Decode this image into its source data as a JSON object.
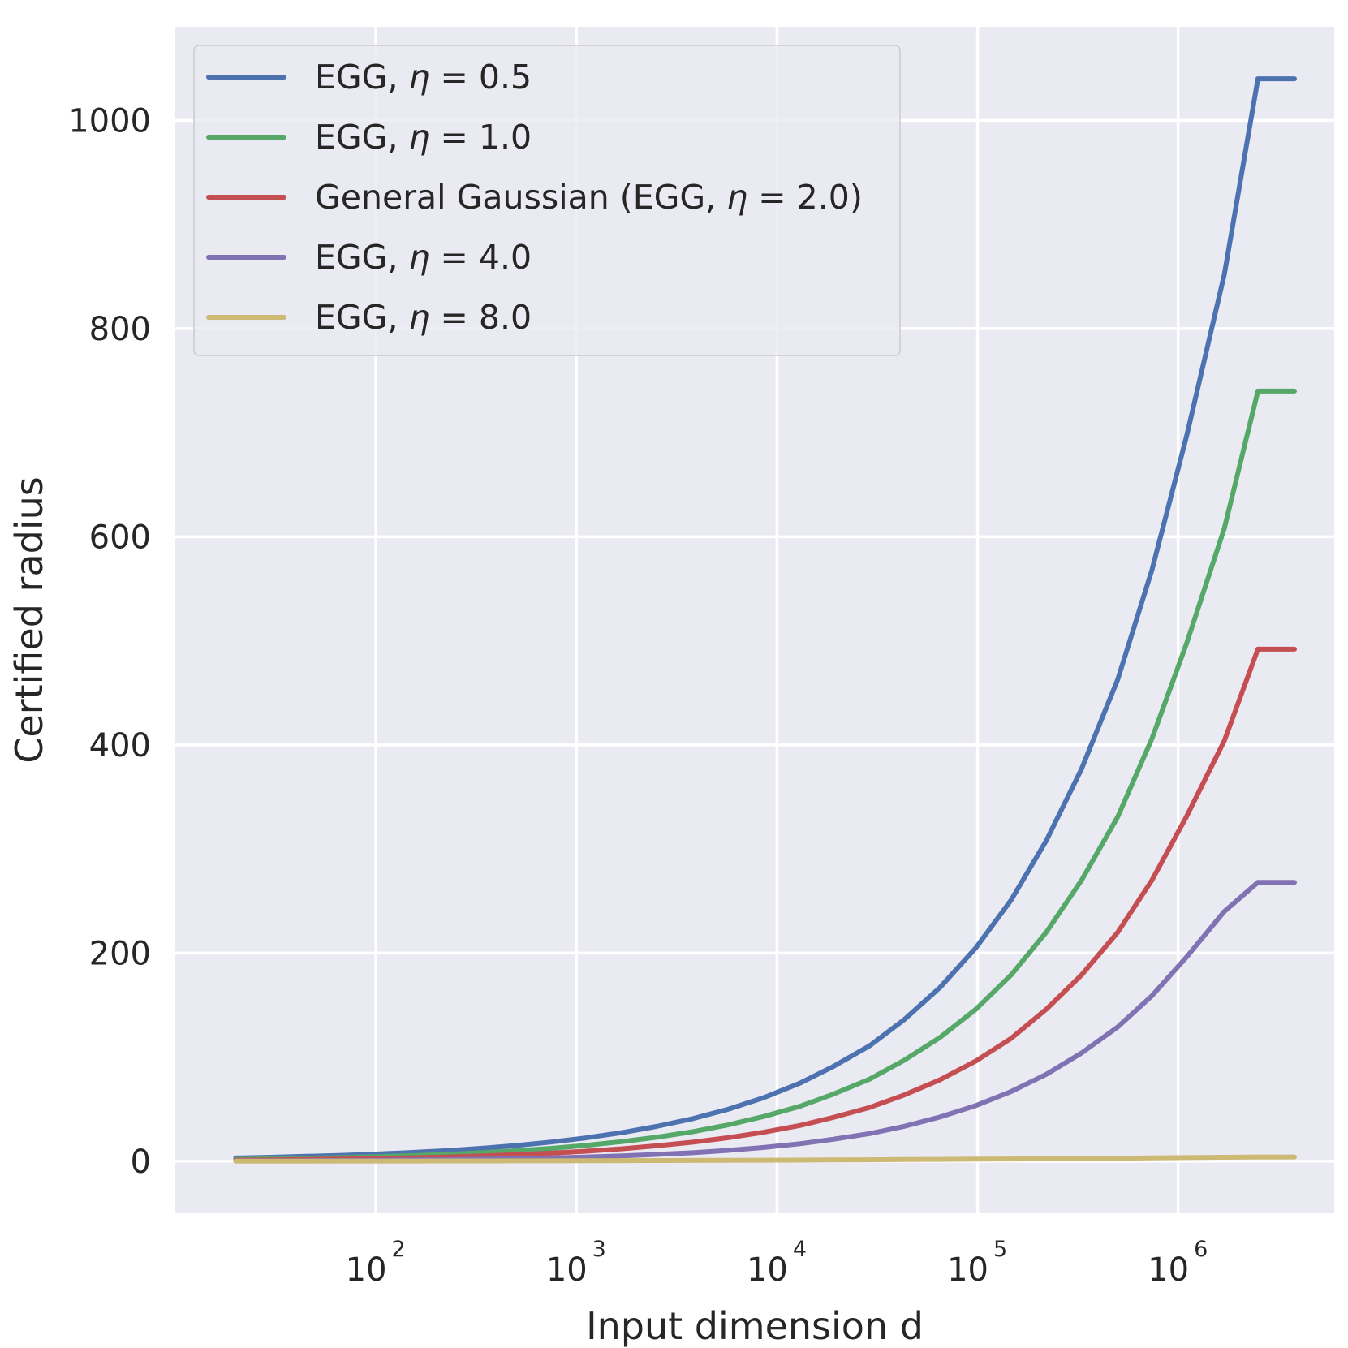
{
  "chart_data": {
    "type": "line",
    "xscale": "log",
    "xlabel": "Input dimension d",
    "ylabel": "Certified radius",
    "xlim": [
      10,
      6000000
    ],
    "ylim": [
      -50,
      1090
    ],
    "yticks": [
      0,
      200,
      400,
      600,
      800,
      1000
    ],
    "ytick_labels": [
      "0",
      "200",
      "400",
      "600",
      "800",
      "1000"
    ],
    "xticks": [
      {
        "value": 100,
        "base": "10",
        "exp": "2"
      },
      {
        "value": 1000,
        "base": "10",
        "exp": "3"
      },
      {
        "value": 10000,
        "base": "10",
        "exp": "4"
      },
      {
        "value": 100000,
        "base": "10",
        "exp": "5"
      },
      {
        "value": 1000000,
        "base": "10",
        "exp": "6"
      }
    ],
    "grid": true,
    "legend_position": "upper-left",
    "x": [
      20,
      30,
      45,
      68,
      100,
      150,
      230,
      350,
      500,
      750,
      1100,
      1700,
      2500,
      3800,
      5700,
      8600,
      13000,
      19000,
      29000,
      43000,
      65000,
      98000,
      147000,
      220000,
      330000,
      500000,
      740000,
      1100000,
      1700000,
      2500000,
      3800000
    ],
    "series": [
      {
        "name": "EGG, η = 0.5",
        "prefix": "EGG, ",
        "var": "η",
        "suffix": " = 0.5",
        "color": "#4c72b0",
        "values": [
          3.1,
          3.8,
          4.7,
          5.7,
          6.9,
          8.4,
          10.3,
          12.7,
          15.1,
          18.5,
          22.3,
          27.6,
          33.4,
          40.9,
          49.9,
          61.1,
          75.0,
          90.8,
          111,
          136,
          167,
          205,
          251,
          308,
          377,
          463,
          568,
          696,
          852,
          1040,
          1040
        ]
      },
      {
        "name": "EGG, η = 1.0",
        "prefix": "EGG, ",
        "var": "η",
        "suffix": " = 1.0",
        "color": "#55a868",
        "values": [
          1.8,
          2.3,
          2.9,
          3.6,
          4.4,
          5.4,
          6.8,
          8.4,
          10.1,
          12.4,
          15.1,
          18.9,
          23.0,
          28.4,
          34.9,
          43.0,
          52.8,
          64.3,
          79.0,
          97.0,
          119,
          146,
          179,
          220,
          270,
          331,
          406,
          497,
          608,
          740,
          740
        ]
      },
      {
        "name": "General Gaussian (EGG, η = 2.0)",
        "prefix": "General Gaussian (EGG, ",
        "var": "η",
        "suffix": " = 2.0)",
        "color": "#c44e52",
        "values": [
          1.0,
          1.3,
          1.7,
          2.1,
          2.6,
          3.3,
          4.1,
          5.2,
          6.3,
          7.8,
          9.6,
          12.0,
          14.8,
          18.3,
          22.6,
          27.9,
          34.4,
          42.0,
          51.7,
          63.6,
          78.3,
          96.3,
          118,
          146,
          179,
          220,
          270,
          331,
          404,
          492,
          492
        ]
      },
      {
        "name": "EGG, η = 4.0",
        "prefix": "EGG, ",
        "var": "η",
        "suffix": " = 4.0",
        "color": "#8172b3",
        "values": [
          0.3,
          0.4,
          0.5,
          0.7,
          0.9,
          1.2,
          1.5,
          2.0,
          2.5,
          3.2,
          4.0,
          5.2,
          6.5,
          8.2,
          10.4,
          13.2,
          16.8,
          21.0,
          26.6,
          33.5,
          42.5,
          53.5,
          67.0,
          83.5,
          104,
          129,
          159,
          196,
          240,
          268,
          268
        ]
      },
      {
        "name": "EGG, η = 8.0",
        "prefix": "EGG, ",
        "var": "η",
        "suffix": " = 8.0",
        "color": "#ccb974",
        "values": [
          0.1,
          0.1,
          0.1,
          0.2,
          0.2,
          0.2,
          0.3,
          0.3,
          0.4,
          0.4,
          0.5,
          0.6,
          0.7,
          0.8,
          0.9,
          1.0,
          1.1,
          1.3,
          1.4,
          1.6,
          1.8,
          2.0,
          2.2,
          2.4,
          2.7,
          2.9,
          3.2,
          3.5,
          3.8,
          4.1,
          4.1
        ]
      }
    ]
  }
}
